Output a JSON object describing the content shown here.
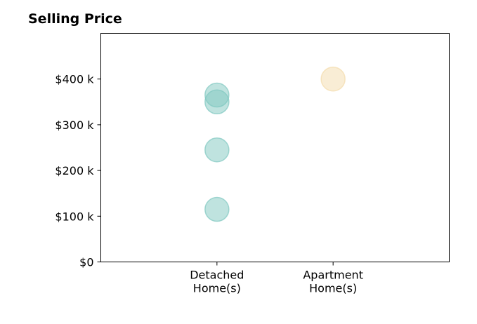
{
  "chart_data": {
    "type": "scatter",
    "title": "Selling Price",
    "xlabel": "",
    "ylabel": "",
    "categories": [
      [
        "Detached",
        "Home(s)"
      ],
      [
        "Apartment",
        "Home(s)"
      ]
    ],
    "x_range": [
      -1,
      2
    ],
    "ylim": [
      0,
      500000
    ],
    "y_ticks": [
      {
        "value": 0,
        "label": "$0"
      },
      {
        "value": 100000,
        "label": "$100 k"
      },
      {
        "value": 200000,
        "label": "$200 k"
      },
      {
        "value": 300000,
        "label": "$300 k"
      },
      {
        "value": 400000,
        "label": "$400 k"
      }
    ],
    "grid": false,
    "series": [
      {
        "color": "#7fc8c0",
        "points": [
          {
            "category": 0,
            "y": 115000
          },
          {
            "category": 0,
            "y": 245000
          },
          {
            "category": 0,
            "y": 350000
          },
          {
            "category": 0,
            "y": 365000
          }
        ]
      },
      {
        "color": "#f3dcab",
        "points": [
          {
            "category": 1,
            "y": 400000
          }
        ]
      }
    ]
  }
}
